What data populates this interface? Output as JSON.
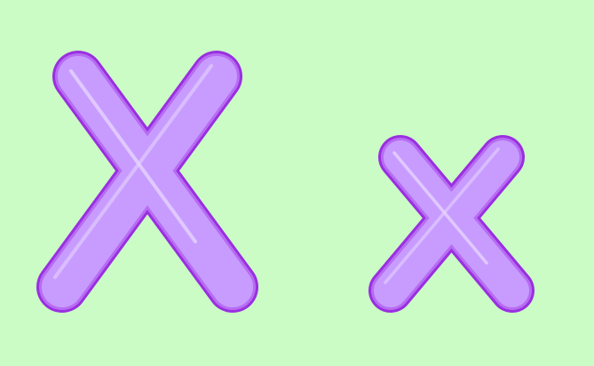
{
  "scene": {
    "background_color": "#cbfcc6",
    "letters": [
      {
        "id": "uppercase",
        "glyph": "X",
        "case": "upper",
        "fill": "#c89cff",
        "outline": "#9a2fe0"
      },
      {
        "id": "lowercase",
        "glyph": "x",
        "case": "lower",
        "fill": "#c89cff",
        "outline": "#9a2fe0"
      }
    ]
  }
}
